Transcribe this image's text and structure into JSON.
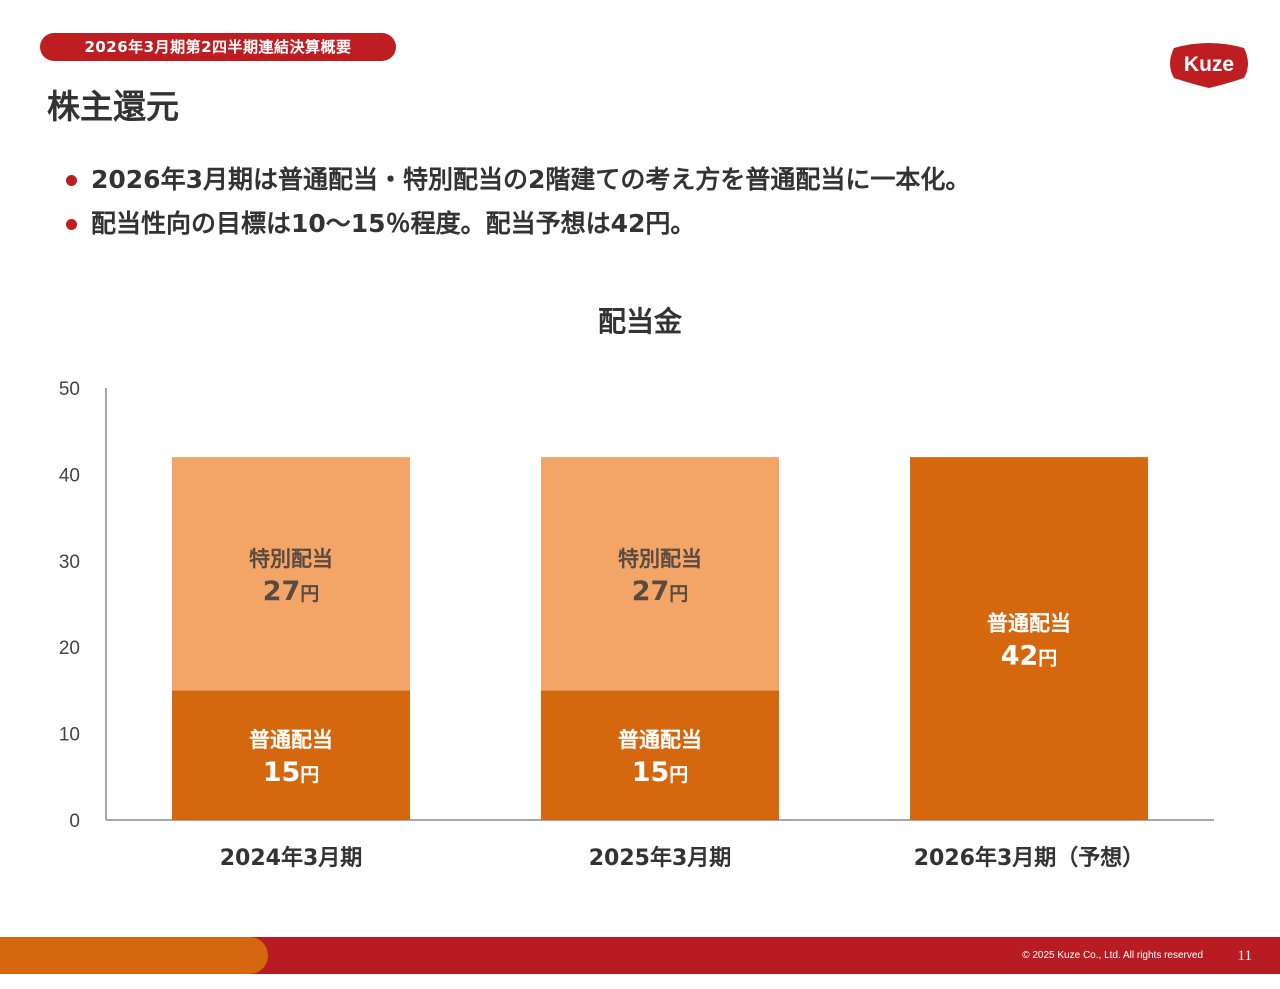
{
  "header": {
    "badge": "2026年3月期第2四半期連結決算概要",
    "title": "株主還元",
    "logo_text": "Kuze"
  },
  "bullets": [
    "2026年3月期は普通配当・特別配当の2階建ての考え方を普通配当に一本化。",
    "配当性向の目標は10〜15％程度。配当予想は42円。"
  ],
  "colors": {
    "brand_red": "#be1e22",
    "regular": "#d5680f",
    "special": "#f2a566"
  },
  "chart_data": {
    "type": "bar",
    "stacked": true,
    "title": "配当金",
    "categories": [
      "2024年3月期",
      "2025年3月期",
      "2026年3月期（予想）"
    ],
    "ylim": [
      0,
      50
    ],
    "yticks": [
      0,
      10,
      20,
      30,
      40,
      50
    ],
    "grid": false,
    "series": [
      {
        "name": "普通配当",
        "values": [
          15,
          15,
          42
        ],
        "color": "#d5680f",
        "label_color": "#ffffff"
      },
      {
        "name": "特別配当",
        "values": [
          27,
          27,
          0
        ],
        "color": "#f2a566",
        "label_color": "#5a4a40"
      }
    ],
    "unit": "円"
  },
  "footer": {
    "copyright": "© 2025 Kuze Co., Ltd. All rights reserved",
    "page": "11"
  }
}
